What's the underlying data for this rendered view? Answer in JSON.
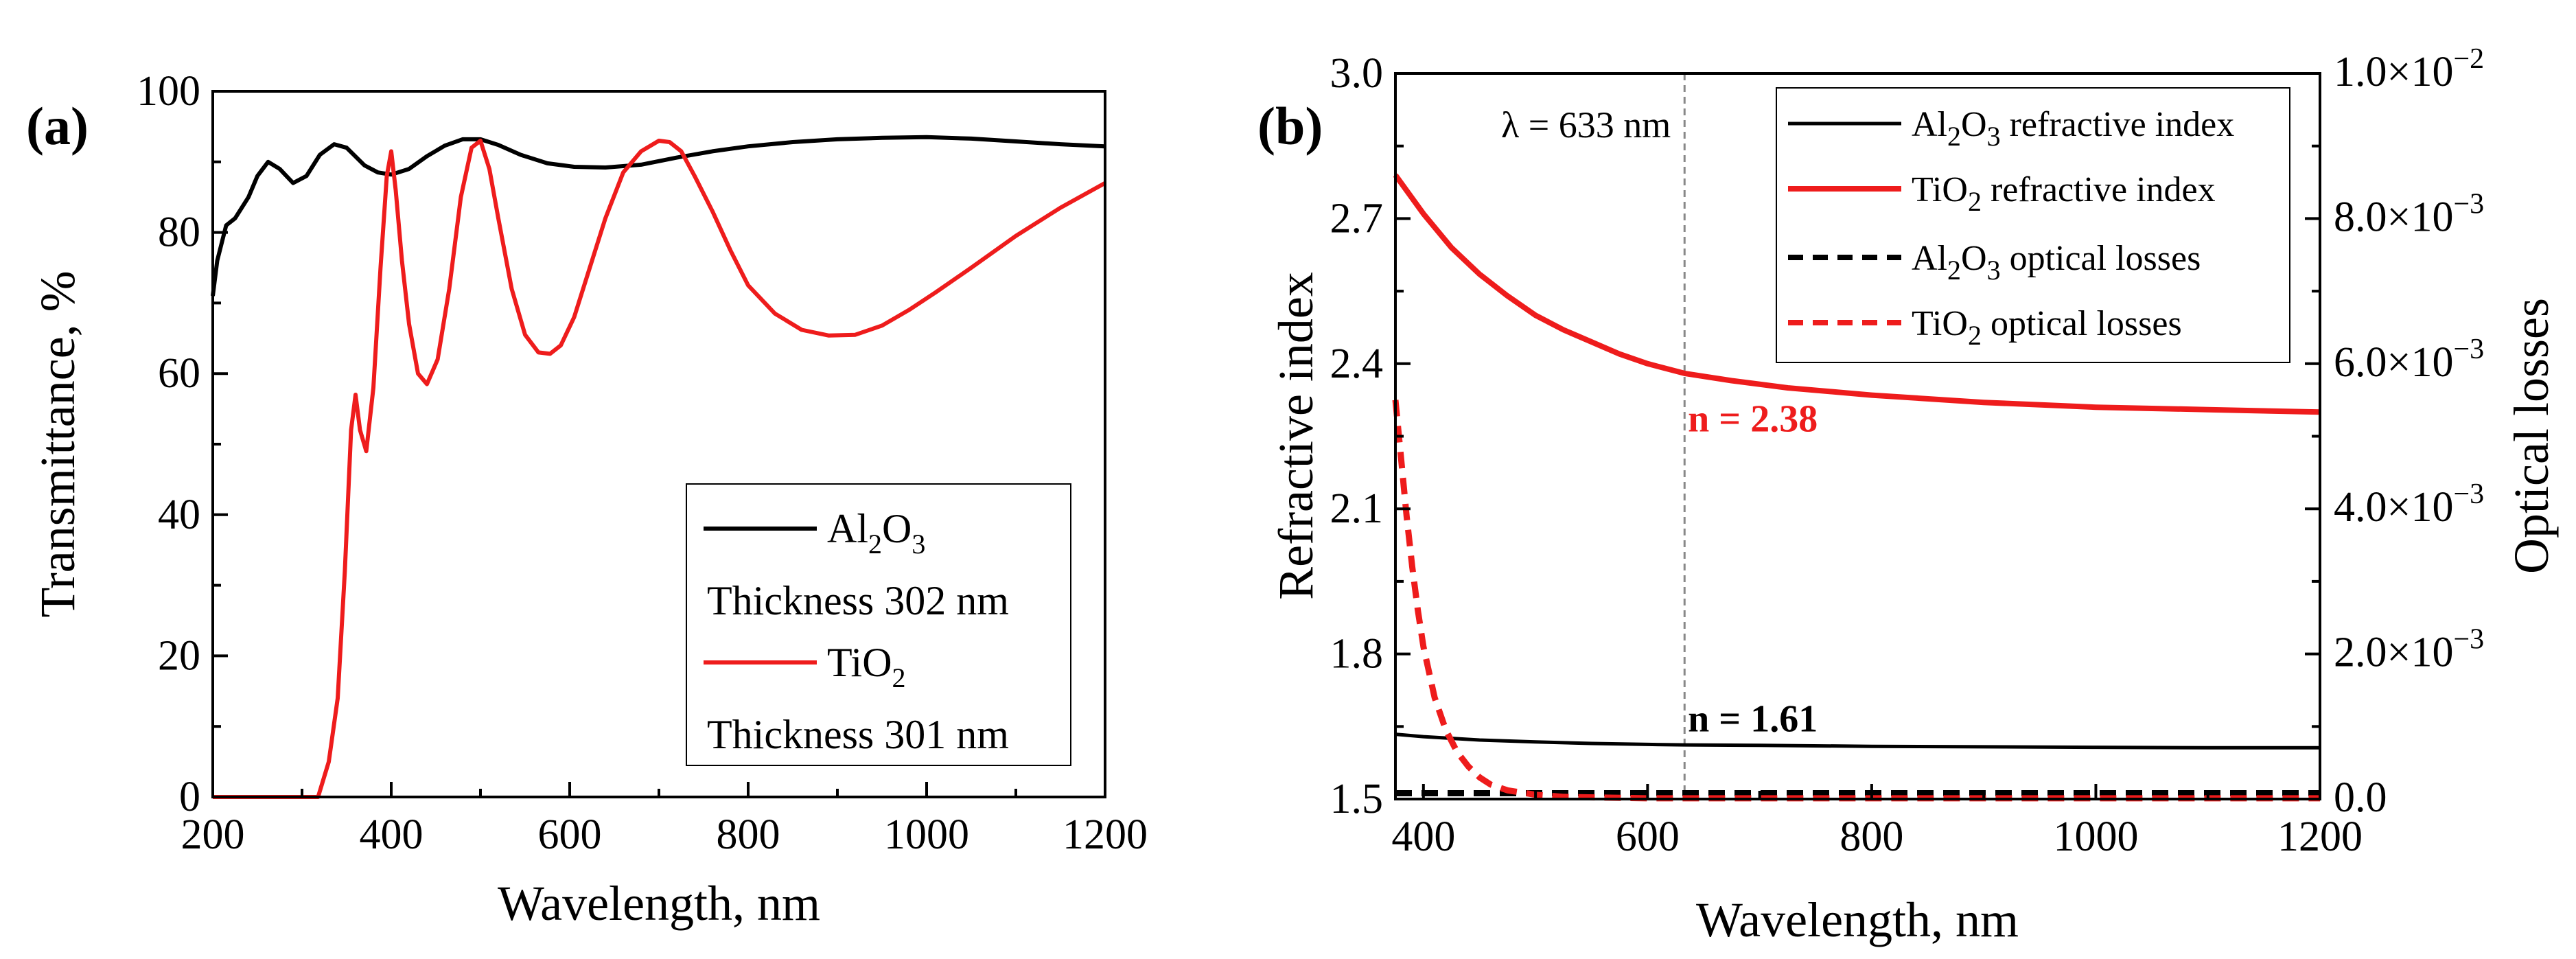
{
  "chart_data": [
    {
      "type": "line",
      "panel_label": "(a)",
      "xlabel": "Wavelength, nm",
      "ylabel": "Transmittance, %",
      "xlim": [
        200,
        1200
      ],
      "ylim": [
        0,
        100
      ],
      "xticks": [
        200,
        400,
        600,
        800,
        1000,
        1200
      ],
      "yticks": [
        0,
        20,
        40,
        60,
        80,
        100
      ],
      "legend_position": "bottom-right",
      "series": [
        {
          "name": "Al2O3",
          "legend_base": "Al",
          "legend_sub1": "2",
          "legend_mid": "O",
          "legend_sub2": "3",
          "legend_note": "Thickness 302 nm",
          "color": "#000000",
          "x": [
            200,
            205,
            215,
            225,
            240,
            250,
            262,
            275,
            290,
            305,
            320,
            336,
            350,
            370,
            385,
            400,
            420,
            440,
            460,
            480,
            500,
            520,
            545,
            575,
            605,
            640,
            680,
            720,
            760,
            800,
            850,
            900,
            950,
            1000,
            1050,
            1100,
            1150,
            1200
          ],
          "y": [
            71,
            76,
            81,
            82,
            85,
            88,
            90,
            89,
            87,
            88,
            91,
            92.5,
            92,
            89.5,
            88.5,
            88.2,
            89,
            90.8,
            92.3,
            93.2,
            93.2,
            92.4,
            91,
            89.8,
            89.3,
            89.2,
            89.6,
            90.6,
            91.5,
            92.2,
            92.8,
            93.2,
            93.4,
            93.5,
            93.3,
            92.9,
            92.5,
            92.2
          ]
        },
        {
          "name": "TiO2",
          "legend_base": "TiO",
          "legend_sub1": "2",
          "legend_note": "Thickness 301 nm",
          "color": "#ee1c1c",
          "x": [
            200,
            300,
            318,
            330,
            340,
            348,
            355,
            360,
            365,
            372,
            380,
            388,
            395,
            400,
            405,
            412,
            420,
            430,
            440,
            452,
            465,
            478,
            490,
            500,
            510,
            520,
            535,
            550,
            565,
            578,
            590,
            605,
            620,
            640,
            660,
            680,
            700,
            712,
            725,
            740,
            760,
            780,
            800,
            830,
            860,
            890,
            920,
            950,
            980,
            1010,
            1050,
            1100,
            1150,
            1200
          ],
          "y": [
            0,
            0,
            0,
            5,
            14,
            32,
            52,
            57,
            52,
            49,
            58,
            75,
            88,
            91.5,
            86,
            76,
            67,
            60,
            58.5,
            62,
            72,
            85,
            92,
            93,
            89,
            82,
            72,
            65.5,
            63,
            62.8,
            64,
            68,
            74,
            82,
            88.5,
            91.5,
            93,
            92.8,
            91.5,
            88,
            83,
            77.5,
            72.5,
            68.5,
            66.2,
            65.4,
            65.5,
            66.8,
            69,
            71.5,
            75,
            79.5,
            83.5,
            87
          ]
        }
      ]
    },
    {
      "type": "line",
      "panel_label": "(b)",
      "xlabel": "Wavelength, nm",
      "ylabel": "Refractive index",
      "ylabel_right": "Optical losses",
      "xlim": [
        375,
        1200
      ],
      "ylim": [
        1.5,
        3.0
      ],
      "ylim_right": [
        0,
        0.01
      ],
      "xticks": [
        400,
        600,
        800,
        1000,
        1200
      ],
      "yticks": [
        1.5,
        1.8,
        2.1,
        2.4,
        2.7,
        3.0
      ],
      "yticks_labels": [
        "1.5",
        "1.8",
        "2.1",
        "2.4",
        "2.7",
        "3.0"
      ],
      "yticks_right": [
        0,
        0.002,
        0.004,
        0.006,
        0.008,
        0.01
      ],
      "yticks_right_labels": [
        {
          "plain": "0.0"
        },
        {
          "mant": "2.0",
          "exp": "−3"
        },
        {
          "mant": "4.0",
          "exp": "−3"
        },
        {
          "mant": "6.0",
          "exp": "−3"
        },
        {
          "mant": "8.0",
          "exp": "−3"
        },
        {
          "mant": "1.0",
          "exp": "−2"
        }
      ],
      "vline": {
        "x": 633,
        "label": "λ = 633 nm"
      },
      "annotations": [
        {
          "text": "n = 2.38",
          "x": 636,
          "y": 2.26,
          "color": "#ee1c1c"
        },
        {
          "text": "n = 1.61",
          "x": 636,
          "y": 1.64,
          "color": "#000000"
        }
      ],
      "legend_position": "top-right",
      "series": [
        {
          "name": "Al2O3 refractive index",
          "legend_base": "Al",
          "legend_sub1": "2",
          "legend_mid": "O",
          "legend_sub2": "3",
          "legend_tail": " refractive index",
          "axis": "left",
          "style": "solid",
          "color": "#000000",
          "x": [
            375,
            400,
            450,
            500,
            550,
            600,
            633,
            700,
            800,
            900,
            1000,
            1100,
            1200
          ],
          "y": [
            1.634,
            1.629,
            1.622,
            1.618,
            1.615,
            1.613,
            1.612,
            1.611,
            1.609,
            1.608,
            1.607,
            1.606,
            1.606
          ]
        },
        {
          "name": "TiO2 refractive index",
          "legend_base": "TiO",
          "legend_sub1": "2",
          "legend_tail": " refractive index",
          "axis": "left",
          "style": "solid",
          "color": "#ee1c1c",
          "x": [
            375,
            400,
            425,
            450,
            475,
            500,
            525,
            550,
            575,
            600,
            633,
            675,
            725,
            800,
            900,
            1000,
            1100,
            1200
          ],
          "y": [
            2.79,
            2.71,
            2.64,
            2.585,
            2.54,
            2.5,
            2.47,
            2.445,
            2.42,
            2.4,
            2.38,
            2.365,
            2.35,
            2.335,
            2.32,
            2.31,
            2.305,
            2.3
          ],
          "label_value": "n = 2.38"
        },
        {
          "name": "Al2O3 optical losses",
          "legend_base": "Al",
          "legend_sub1": "2",
          "legend_mid": "O",
          "legend_sub2": "3",
          "legend_tail": " optical losses",
          "axis": "right",
          "style": "dashed",
          "color": "#000000",
          "x": [
            375,
            500,
            700,
            900,
            1200
          ],
          "y": [
            8e-05,
            8e-05,
            8e-05,
            8e-05,
            8e-05
          ]
        },
        {
          "name": "TiO2 optical losses",
          "legend_base": "TiO",
          "legend_sub1": "2",
          "legend_tail": " optical losses",
          "axis": "right",
          "style": "dashed",
          "color": "#ee1c1c",
          "x": [
            375,
            380,
            385,
            390,
            395,
            400,
            410,
            420,
            430,
            440,
            450,
            460,
            475,
            500,
            525,
            560,
            600,
            700,
            800,
            1000,
            1200
          ],
          "y": [
            0.0055,
            0.0047,
            0.0039,
            0.0032,
            0.0026,
            0.0021,
            0.0014,
            0.00095,
            0.00065,
            0.00045,
            0.0003,
            0.0002,
            0.00012,
            6e-05,
            3e-05,
            2e-05,
            1e-05,
            1e-05,
            1e-05,
            1e-05,
            1e-05
          ]
        }
      ]
    }
  ]
}
